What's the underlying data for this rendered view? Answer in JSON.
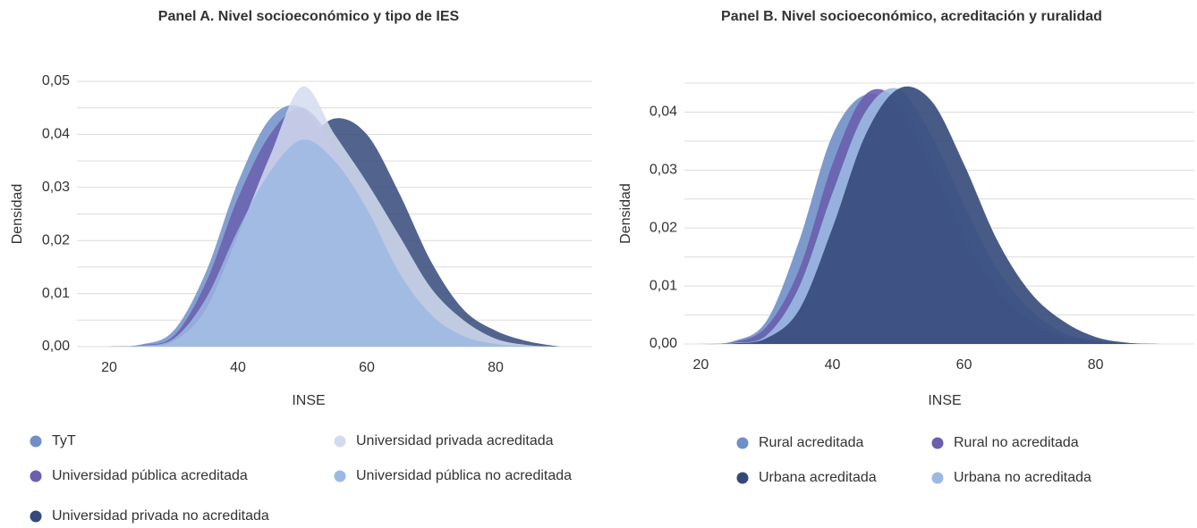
{
  "chart_data": [
    {
      "type": "area",
      "title": "Panel A. Nivel socioeconómico y tipo de IES",
      "x_label": "INSE",
      "y_label": "Densidad",
      "x": [
        20,
        25,
        30,
        35,
        40,
        45,
        50,
        55,
        60,
        65,
        70,
        75,
        80,
        85,
        90
      ],
      "xlim": [
        15,
        95
      ],
      "xticks": [
        20,
        40,
        60,
        80
      ],
      "ylim": [
        0,
        0.05
      ],
      "yticks": [
        {
          "value": 0,
          "label": "0,00"
        },
        {
          "value": 0.01,
          "label": "0,01"
        },
        {
          "value": 0.02,
          "label": "0,02"
        },
        {
          "value": 0.03,
          "label": "0,03"
        },
        {
          "value": 0.04,
          "label": "0,04"
        },
        {
          "value": 0.05,
          "label": "0,05"
        }
      ],
      "grid": true,
      "series": [
        {
          "name": "TyT",
          "color": "#6f8fc8",
          "values": [
            0,
            0.0004,
            0.003,
            0.014,
            0.031,
            0.043,
            0.045,
            0.036,
            0.023,
            0.012,
            0.005,
            0.002,
            0.0006,
            0.0001,
            0
          ]
        },
        {
          "name": "Universidad privada acreditada",
          "color": "#d3dcef",
          "values": [
            0,
            0.0001,
            0.001,
            0.007,
            0.021,
            0.036,
            0.049,
            0.04,
            0.031,
            0.021,
            0.011,
            0.005,
            0.0015,
            0.0003,
            0
          ]
        },
        {
          "name": "Universidad pública acreditada",
          "color": "#6a5fae",
          "values": [
            0,
            0.0003,
            0.002,
            0.012,
            0.028,
            0.04,
            0.045,
            0.038,
            0.025,
            0.013,
            0.006,
            0.002,
            0.0006,
            0.0001,
            0
          ]
        },
        {
          "name": "Universidad pública no acreditada",
          "color": "#9cb9e3",
          "values": [
            0,
            0.0002,
            0.0015,
            0.009,
            0.022,
            0.033,
            0.039,
            0.035,
            0.026,
            0.014,
            0.006,
            0.002,
            0.0005,
            0.0001,
            0
          ]
        },
        {
          "name": "Universidad privada no acreditada",
          "color": "#34497a",
          "values": [
            0,
            0.0002,
            0.0015,
            0.008,
            0.022,
            0.033,
            0.038,
            0.043,
            0.04,
            0.029,
            0.016,
            0.007,
            0.003,
            0.001,
            0
          ]
        }
      ]
    },
    {
      "type": "area",
      "title": "Panel B. Nivel socioeconómico, acreditación y ruralidad",
      "x_label": "INSE",
      "y_label": "Densidad",
      "x": [
        20,
        25,
        30,
        35,
        40,
        45,
        50,
        55,
        60,
        65,
        70,
        75,
        80,
        85,
        90
      ],
      "xlim": [
        17.5,
        95
      ],
      "xticks": [
        20,
        40,
        60,
        80
      ],
      "ylim": [
        0,
        0.045
      ],
      "yticks": [
        {
          "value": 0,
          "label": "0,00"
        },
        {
          "value": 0.01,
          "label": "0,01"
        },
        {
          "value": 0.02,
          "label": "0,02"
        },
        {
          "value": 0.03,
          "label": "0,03"
        },
        {
          "value": 0.04,
          "label": "0,04"
        }
      ],
      "grid": true,
      "series": [
        {
          "name": "Rural acreditada",
          "color": "#6f8fc8",
          "values": [
            0,
            0.0005,
            0.004,
            0.018,
            0.036,
            0.043,
            0.04,
            0.03,
            0.018,
            0.009,
            0.004,
            0.0015,
            0.0004,
            0.0001,
            0
          ]
        },
        {
          "name": "Rural no acreditada",
          "color": "#6a5fae",
          "values": [
            0,
            0.0003,
            0.003,
            0.013,
            0.031,
            0.043,
            0.042,
            0.032,
            0.02,
            0.01,
            0.004,
            0.0015,
            0.0004,
            0.0001,
            0
          ]
        },
        {
          "name": "Urbana acreditada",
          "color": "#34497a",
          "values": [
            0,
            0.0001,
            0.001,
            0.006,
            0.02,
            0.036,
            0.044,
            0.042,
            0.031,
            0.018,
            0.009,
            0.004,
            0.0012,
            0.0002,
            0
          ]
        },
        {
          "name": "Urbana no acreditada",
          "color": "#9cb9e3",
          "values": [
            0,
            0.0002,
            0.0015,
            0.01,
            0.026,
            0.04,
            0.044,
            0.036,
            0.024,
            0.013,
            0.006,
            0.002,
            0.0006,
            0.0001,
            0
          ]
        }
      ]
    }
  ]
}
